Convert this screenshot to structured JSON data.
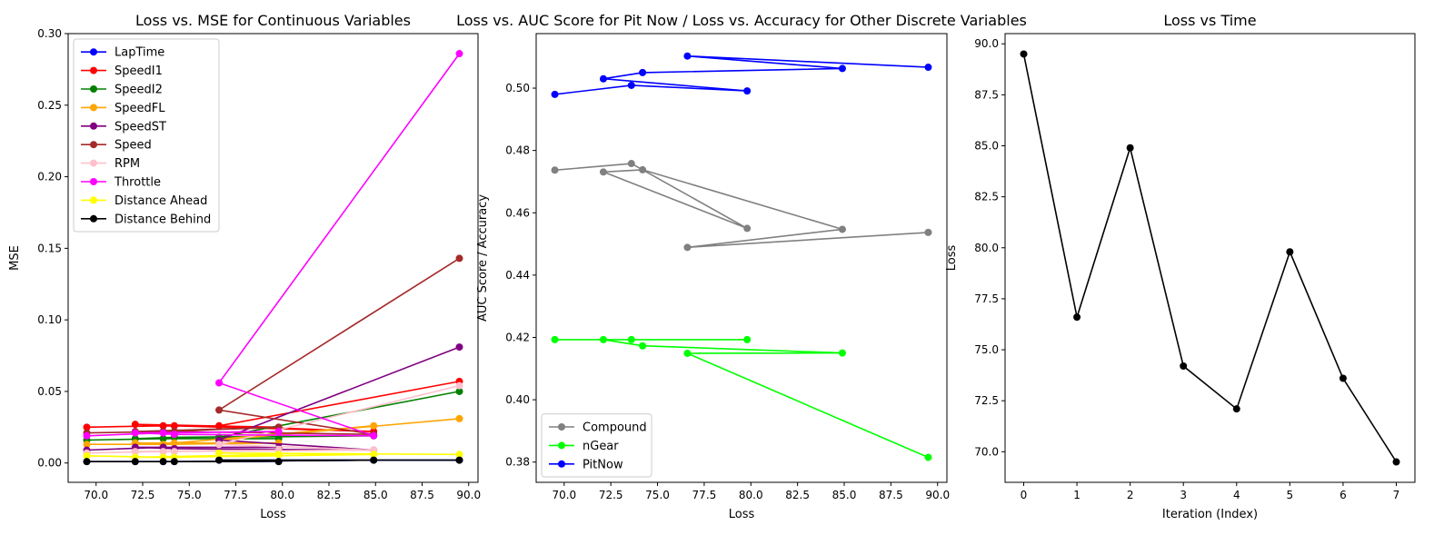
{
  "chart_data": [
    {
      "type": "line",
      "title": "Loss vs. MSE for Continuous Variables",
      "xlabel": "Loss",
      "ylabel": "MSE",
      "xlim": [
        68.5,
        90.5
      ],
      "ylim": [
        -0.0135,
        0.3
      ],
      "xticks": [
        "70.0",
        "72.5",
        "75.0",
        "77.5",
        "80.0",
        "82.5",
        "85.0",
        "87.5",
        "90.0"
      ],
      "yticks": [
        "0.00",
        "0.05",
        "0.10",
        "0.15",
        "0.20",
        "0.25",
        "0.30"
      ],
      "legend_position": "upper-left",
      "x": [
        89.5,
        76.6,
        84.9,
        74.2,
        72.1,
        79.8,
        73.6,
        69.5
      ],
      "series": [
        {
          "name": "LapTime",
          "color": "#0000ff",
          "values": [
            0.002,
            0.002,
            0.002,
            0.001,
            0.001,
            0.001,
            0.001,
            0.001
          ]
        },
        {
          "name": "SpeedI1",
          "color": "#ff0000",
          "values": [
            0.057,
            0.026,
            0.022,
            0.026,
            0.027,
            0.025,
            0.026,
            0.025
          ]
        },
        {
          "name": "SpeedI2",
          "color": "#008000",
          "values": [
            0.05,
            0.018,
            0.019,
            0.018,
            0.017,
            0.017,
            0.017,
            0.016
          ]
        },
        {
          "name": "SpeedFL",
          "color": "#ffa500",
          "values": [
            0.031,
            0.016,
            0.026,
            0.014,
            0.014,
            0.014,
            0.013,
            0.013
          ]
        },
        {
          "name": "SpeedST",
          "color": "#800080",
          "values": [
            0.081,
            0.016,
            0.009,
            0.01,
            0.011,
            0.011,
            0.011,
            0.009
          ]
        },
        {
          "name": "Speed",
          "color": "#a52a2a",
          "values": [
            0.143,
            0.037,
            0.02,
            0.022,
            0.022,
            0.025,
            0.022,
            0.021
          ]
        },
        {
          "name": "RPM",
          "color": "#ffc0cb",
          "values": [
            0.054,
            0.013,
            0.009,
            0.008,
            0.008,
            0.009,
            0.008,
            0.007
          ]
        },
        {
          "name": "Throttle",
          "color": "#ff00ff",
          "values": [
            0.286,
            0.056,
            0.019,
            0.02,
            0.021,
            0.022,
            0.021,
            0.019
          ]
        },
        {
          "name": "Distance Ahead",
          "color": "#ffff00",
          "values": [
            0.006,
            0.007,
            0.006,
            0.004,
            0.004,
            0.006,
            0.004,
            0.005
          ]
        },
        {
          "name": "Distance Behind",
          "color": "#000000",
          "values": [
            0.002,
            0.002,
            0.002,
            0.001,
            0.001,
            0.001,
            0.001,
            0.001
          ]
        }
      ]
    },
    {
      "type": "line",
      "title": "Loss vs. AUC Score for Pit Now / Loss vs. Accuracy for Other Discrete Variables",
      "xlabel": "Loss",
      "ylabel": "AUC Score / Accuracy",
      "xlim": [
        68.5,
        90.5
      ],
      "ylim": [
        0.3735,
        0.5175
      ],
      "xticks": [
        "70.0",
        "72.5",
        "75.0",
        "77.5",
        "80.0",
        "82.5",
        "85.0",
        "87.5",
        "90.0"
      ],
      "yticks": [
        "0.38",
        "0.40",
        "0.42",
        "0.44",
        "0.46",
        "0.48",
        "0.50"
      ],
      "legend_position": "lower-left",
      "x": [
        89.5,
        76.6,
        84.9,
        74.2,
        72.1,
        79.8,
        73.6,
        69.5
      ],
      "series": [
        {
          "name": "Compound",
          "color": "#808080",
          "values": [
            0.4537,
            0.4489,
            0.4547,
            0.4738,
            0.4731,
            0.455,
            0.4758,
            0.4737
          ]
        },
        {
          "name": "nGear",
          "color": "#00ff00",
          "values": [
            0.3815,
            0.4149,
            0.415,
            0.4173,
            0.4193,
            0.4193,
            0.4193,
            0.4193
          ]
        },
        {
          "name": "PitNow",
          "color": "#0000ff",
          "values": [
            0.5067,
            0.5103,
            0.5063,
            0.505,
            0.503,
            0.4991,
            0.5009,
            0.498
          ]
        }
      ]
    },
    {
      "type": "line",
      "title": "Loss vs Time",
      "xlabel": "Iteration (Index)",
      "ylabel": "Loss",
      "xlim": [
        -0.35,
        7.35
      ],
      "ylim": [
        68.5,
        90.5
      ],
      "xticks": [
        "0",
        "1",
        "2",
        "3",
        "4",
        "5",
        "6",
        "7"
      ],
      "yticks": [
        "70.0",
        "72.5",
        "75.0",
        "77.5",
        "80.0",
        "82.5",
        "85.0",
        "87.5",
        "90.0"
      ],
      "x": [
        0,
        1,
        2,
        3,
        4,
        5,
        6,
        7
      ],
      "series": [
        {
          "name": "",
          "color": "#000000",
          "values": [
            89.5,
            76.6,
            84.9,
            74.2,
            72.1,
            79.8,
            73.6,
            69.5
          ]
        }
      ]
    }
  ]
}
